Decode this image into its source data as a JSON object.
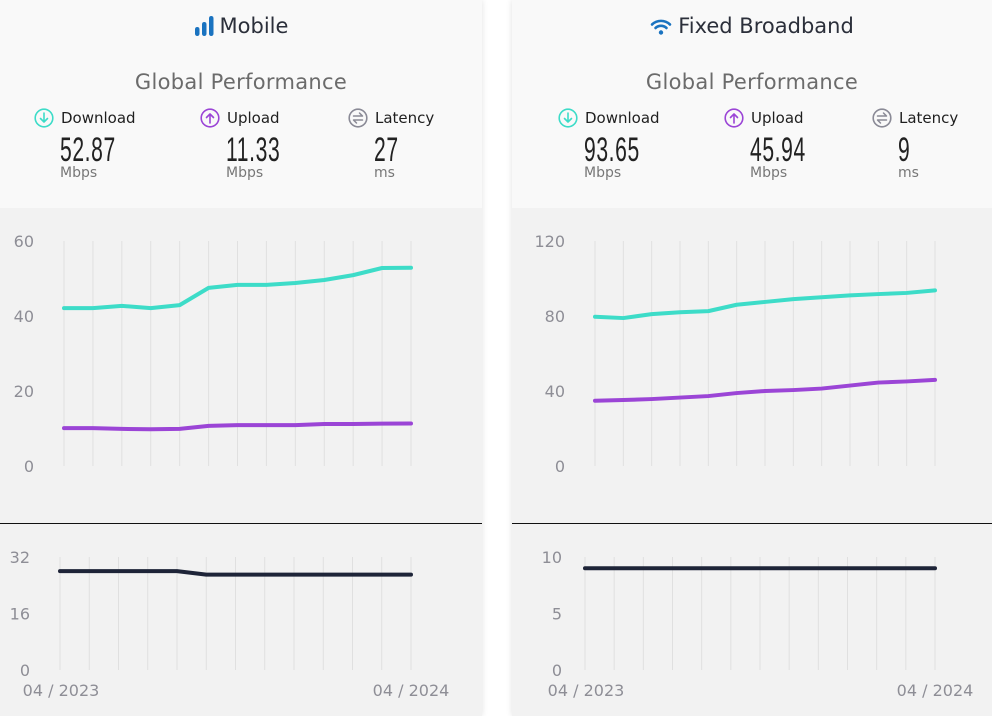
{
  "panels": [
    {
      "title": "Mobile",
      "icon": "signal-bars-icon",
      "subtitle": "Global Performance",
      "metrics": [
        {
          "label": "Download",
          "value": "52.87",
          "unit": "Mbps",
          "icon": "download-arrow-icon",
          "color": "#3ddcc8"
        },
        {
          "label": "Upload",
          "value": "11.33",
          "unit": "Mbps",
          "icon": "upload-arrow-icon",
          "color": "#9b45d6"
        },
        {
          "label": "Latency",
          "value": "27",
          "unit": "ms",
          "icon": "latency-arrows-icon",
          "color": "#8a8a96"
        }
      ]
    },
    {
      "title": "Fixed Broadband",
      "icon": "wifi-icon",
      "subtitle": "Global Performance",
      "metrics": [
        {
          "label": "Download",
          "value": "93.65",
          "unit": "Mbps",
          "icon": "download-arrow-icon",
          "color": "#3ddcc8"
        },
        {
          "label": "Upload",
          "value": "45.94",
          "unit": "Mbps",
          "icon": "upload-arrow-icon",
          "color": "#9b45d6"
        },
        {
          "label": "Latency",
          "value": "9",
          "unit": "ms",
          "icon": "latency-arrows-icon",
          "color": "#8a8a96"
        }
      ]
    }
  ],
  "colors": {
    "download": "#3ddcc8",
    "upload": "#9b45d6",
    "latency": "#1e2438",
    "icon_blue": "#1a73c0"
  },
  "chart_data": [
    {
      "type": "line",
      "panel": "Mobile",
      "x_tick_labels": [
        "04 / 2023",
        "04 / 2024"
      ],
      "speed": {
        "ylim": [
          0,
          60
        ],
        "yticks": [
          0,
          20,
          40,
          60
        ],
        "series": [
          {
            "name": "Download",
            "values": [
              42.1,
              42.1,
              42.7,
              42.1,
              42.9,
              47.5,
              48.3,
              48.3,
              48.8,
              49.6,
              50.9,
              52.8,
              52.87
            ]
          },
          {
            "name": "Upload",
            "values": [
              10.1,
              10.1,
              9.9,
              9.8,
              9.9,
              10.7,
              10.9,
              10.9,
              10.9,
              11.2,
              11.2,
              11.3,
              11.33
            ]
          }
        ]
      },
      "latency": {
        "ylim": [
          0,
          32
        ],
        "yticks": [
          0,
          16,
          32
        ],
        "series": [
          {
            "name": "Latency",
            "values": [
              28,
              28,
              28,
              28,
              28,
              27,
              27,
              27,
              27,
              27,
              27,
              27,
              27
            ]
          }
        ]
      },
      "grid": "vertical"
    },
    {
      "type": "line",
      "panel": "Fixed Broadband",
      "x_tick_labels": [
        "04 / 2023",
        "04 / 2024"
      ],
      "speed": {
        "ylim": [
          0,
          120
        ],
        "yticks": [
          0,
          40,
          80,
          120
        ],
        "series": [
          {
            "name": "Download",
            "values": [
              79.6,
              78.9,
              81.0,
              82.0,
              82.6,
              86.0,
              87.5,
              89.0,
              90.0,
              91.0,
              91.7,
              92.3,
              93.65
            ]
          },
          {
            "name": "Upload",
            "values": [
              34.8,
              35.2,
              35.7,
              36.5,
              37.3,
              38.9,
              40.0,
              40.5,
              41.3,
              42.9,
              44.5,
              45.1,
              45.94
            ]
          }
        ]
      },
      "latency": {
        "ylim": [
          0,
          10
        ],
        "yticks": [
          0,
          5,
          10
        ],
        "series": [
          {
            "name": "Latency",
            "values": [
              9,
              9,
              9,
              9,
              9,
              9,
              9,
              9,
              9,
              9,
              9,
              9,
              9
            ]
          }
        ]
      },
      "grid": "vertical"
    }
  ]
}
